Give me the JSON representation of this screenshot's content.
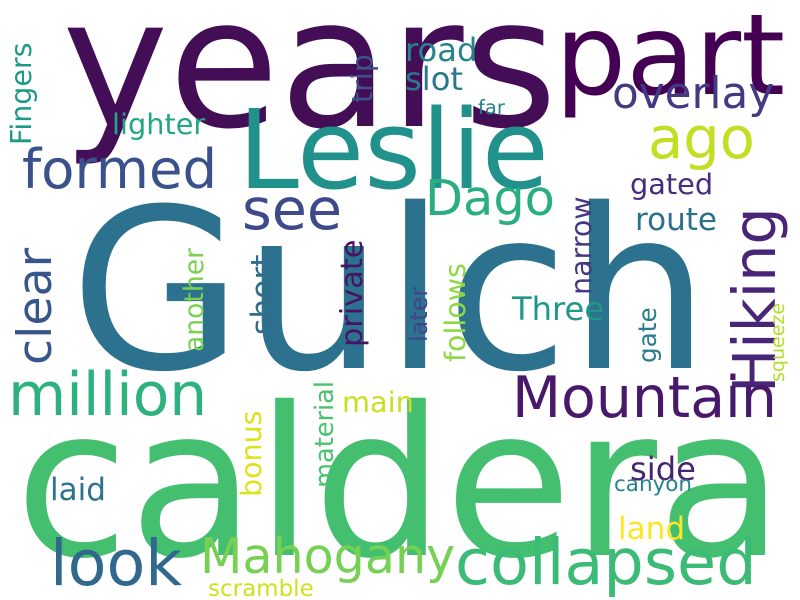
{
  "words": [
    {
      "text": "years",
      "color": "#440e57"
    },
    {
      "text": "part",
      "color": "#440154"
    },
    {
      "text": "Leslie",
      "color": "#21918c"
    },
    {
      "text": "Gulch",
      "color": "#2c728e"
    },
    {
      "text": "caldera",
      "color": "#44bf70"
    },
    {
      "text": "ago",
      "color": "#c2df23"
    },
    {
      "text": "formed",
      "color": "#3b518b"
    },
    {
      "text": "see",
      "color": "#3e4a89"
    },
    {
      "text": "Dago",
      "color": "#28ae80"
    },
    {
      "text": "clear",
      "color": "#39568c"
    },
    {
      "text": "Hiking",
      "color": "#482576"
    },
    {
      "text": "million",
      "color": "#2db27d"
    },
    {
      "text": "Mountain",
      "color": "#48186a"
    },
    {
      "text": "look",
      "color": "#31688e"
    },
    {
      "text": "Mahogany",
      "color": "#75d054"
    },
    {
      "text": "collapsed",
      "color": "#3bbb75"
    },
    {
      "text": "overlay",
      "color": "#443983"
    },
    {
      "text": "road",
      "color": "#25848e"
    },
    {
      "text": "slot",
      "color": "#2a788e"
    },
    {
      "text": "trip",
      "color": "#3b528b"
    },
    {
      "text": "Fingers",
      "color": "#1f9a8a"
    },
    {
      "text": "lighter",
      "color": "#22a785"
    },
    {
      "text": "far",
      "color": "#26828e"
    },
    {
      "text": "gated",
      "color": "#472d7b"
    },
    {
      "text": "route",
      "color": "#2d708e"
    },
    {
      "text": "narrow",
      "color": "#453882"
    },
    {
      "text": "Three",
      "color": "#1f988b"
    },
    {
      "text": "private",
      "color": "#471365"
    },
    {
      "text": "later",
      "color": "#3f4788"
    },
    {
      "text": "follows",
      "color": "#8fd744"
    },
    {
      "text": "gate",
      "color": "#297b8e"
    },
    {
      "text": "squeeze",
      "color": "#b5de2b"
    },
    {
      "text": "short",
      "color": "#2f6c8e"
    },
    {
      "text": "another",
      "color": "#7ad151"
    },
    {
      "text": "main",
      "color": "#c8e020"
    },
    {
      "text": "material",
      "color": "#4ac16d"
    },
    {
      "text": "bonus",
      "color": "#dde318"
    },
    {
      "text": "laid",
      "color": "#2c738e"
    },
    {
      "text": "side",
      "color": "#482374"
    },
    {
      "text": "canyon",
      "color": "#26828e"
    },
    {
      "text": "land",
      "color": "#fde725"
    },
    {
      "text": "scramble",
      "color": "#d0e11c"
    }
  ]
}
